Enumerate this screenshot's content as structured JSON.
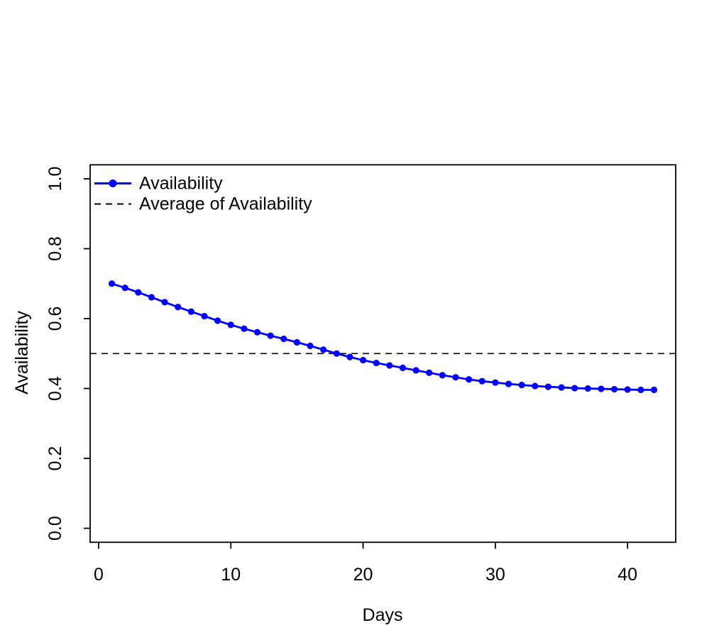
{
  "figure": {
    "background": "#ffffff",
    "axis_color": "#000000"
  },
  "chart_data": {
    "type": "line",
    "title": "",
    "xlabel": "Days",
    "ylabel": "Availability",
    "xlim": [
      -0.64,
      43.64
    ],
    "ylim": [
      -0.04,
      1.04
    ],
    "grid": false,
    "legend_position": "top-left",
    "x_ticks": {
      "values": [
        0,
        10,
        20,
        30,
        40
      ],
      "labels": [
        "0",
        "10",
        "20",
        "30",
        "40"
      ]
    },
    "y_ticks": {
      "values": [
        0.0,
        0.2,
        0.4,
        0.6,
        0.8,
        1.0
      ],
      "labels": [
        "0.0",
        "0.2",
        "0.4",
        "0.6",
        "0.8",
        "1.0"
      ]
    },
    "x": [
      1,
      2,
      3,
      4,
      5,
      6,
      7,
      8,
      9,
      10,
      11,
      12,
      13,
      14,
      15,
      16,
      17,
      18,
      19,
      20,
      21,
      22,
      23,
      24,
      25,
      26,
      27,
      28,
      29,
      30,
      31,
      32,
      33,
      34,
      35,
      36,
      37,
      38,
      39,
      40,
      41,
      42
    ],
    "series": [
      {
        "name": "Availability",
        "color": "#0000ff",
        "marker": "circle",
        "line_style": "solid",
        "values": [
          0.7,
          0.688,
          0.675,
          0.661,
          0.647,
          0.633,
          0.62,
          0.607,
          0.594,
          0.582,
          0.571,
          0.561,
          0.551,
          0.542,
          0.532,
          0.522,
          0.511,
          0.5,
          0.49,
          0.481,
          0.473,
          0.466,
          0.459,
          0.452,
          0.445,
          0.438,
          0.432,
          0.426,
          0.421,
          0.417,
          0.413,
          0.41,
          0.407,
          0.405,
          0.403,
          0.401,
          0.4,
          0.399,
          0.398,
          0.397,
          0.396,
          0.396
        ]
      }
    ],
    "reference_lines": [
      {
        "label": "Average of Availability",
        "value": 0.5,
        "color": "#000000",
        "line_style": "dashed"
      }
    ]
  }
}
